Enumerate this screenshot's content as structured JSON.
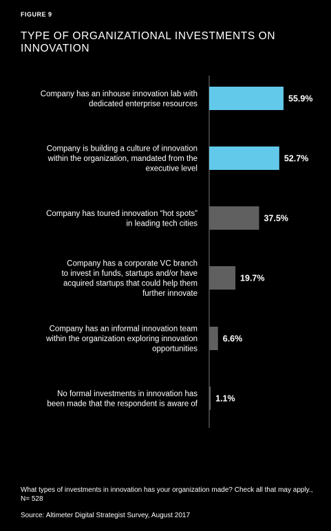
{
  "figure_label": "FIGURE 9",
  "title": "TYPE OF ORGANIZATIONAL INVESTMENTS ON INNOVATION",
  "footnote": "What types of investments in innovation has your organization made? Check all that may apply., N= 528",
  "source": "Source: Altimeter Digital Strategist Survey, August 2017",
  "colors": {
    "background": "#000000",
    "highlight_bar": "#62c9ea",
    "regular_bar": "#606060",
    "axis": "#7a7a7a",
    "text": "#ffffff"
  },
  "chart_data": {
    "type": "bar",
    "orientation": "horizontal",
    "categories": [
      [
        "Company has an inhouse innovation lab with",
        "dedicated enterprise resources"
      ],
      [
        "Company is building a culture of innovation",
        "within the organization, mandated from the",
        "executive level"
      ],
      [
        "Company has toured innovation “hot spots”",
        "in leading tech cities"
      ],
      [
        "Company has a corporate VC branch",
        "to invest in funds, startups and/or have",
        "acquired startups that could help them",
        "further innovate"
      ],
      [
        "Company has an informal innovation team",
        "within the organization exploring innovation",
        "opportunities"
      ],
      [
        "No formal investments in innovation has",
        "been made that the respondent is aware of"
      ]
    ],
    "values": [
      55.9,
      52.7,
      37.5,
      19.7,
      6.6,
      1.1
    ],
    "value_labels": [
      "55.9%",
      "52.7%",
      "37.5%",
      "19.7%",
      "6.6%",
      "1.1%"
    ],
    "highlighted": [
      true,
      true,
      false,
      false,
      false,
      false
    ],
    "unit": "%",
    "xlim": [
      0,
      60
    ],
    "grid": false,
    "legend": "none"
  }
}
